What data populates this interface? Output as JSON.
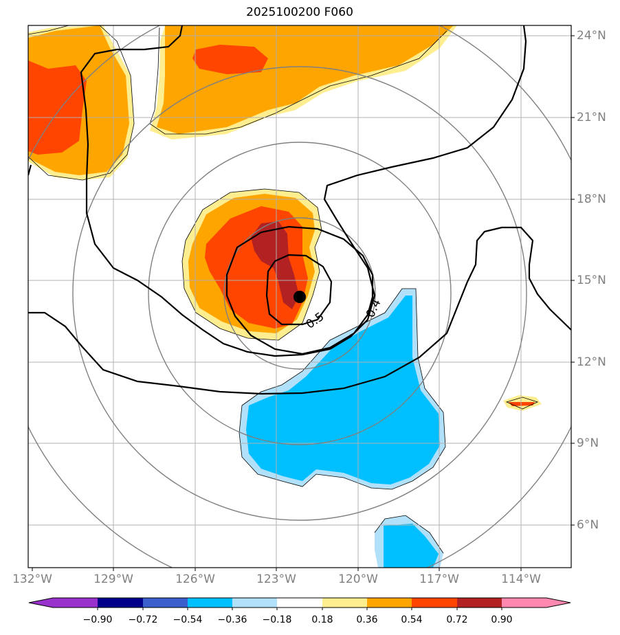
{
  "title": "2025100200 F060",
  "colors": {
    "land_blue": "#00bfff",
    "light_blue": "#b0e0fa",
    "light_yellow": "#ffee90",
    "orange": "#ffa500",
    "red_orange": "#ff4500",
    "dark_red": "#b22222",
    "grid": "#b0b0b0",
    "range_rings": "#808080",
    "contour": "#000000",
    "center_marker": "#000000"
  },
  "axes": {
    "lon_labels": [
      "132°W",
      "129°W",
      "126°W",
      "123°W",
      "120°W",
      "117°W",
      "114°W"
    ],
    "lat_labels": [
      "24°N",
      "21°N",
      "18°N",
      "15°N",
      "12°N",
      "9°N",
      "6°N"
    ]
  },
  "contours": {
    "labels": [
      "0.5",
      "0.4"
    ]
  },
  "colorbar": {
    "colors": [
      "#9932cc",
      "#00008b",
      "#3a5fcd",
      "#00bfff",
      "#b0e0fa",
      "#ffffff",
      "#ffee90",
      "#ffa500",
      "#ff4500",
      "#b22222",
      "#ff88b0"
    ],
    "tick_labels": [
      "−0.90",
      "−0.72",
      "−0.54",
      "−0.36",
      "−0.18",
      "0.18",
      "0.36",
      "0.54",
      "0.72",
      "0.90"
    ]
  }
}
